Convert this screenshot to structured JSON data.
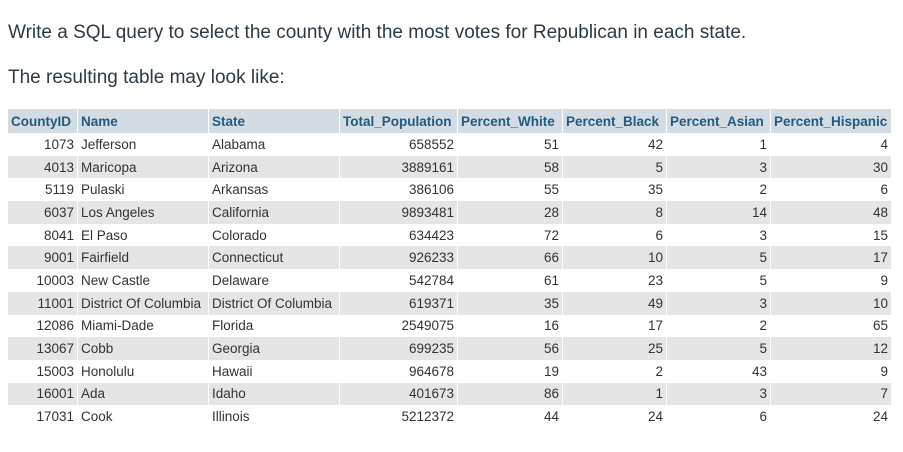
{
  "question": {
    "prompt": "Write a SQL query to select the county with the most votes for Republican in each state.",
    "subprompt": "The resulting table may look like:"
  },
  "table": {
    "columns": [
      "CountyID",
      "Name",
      "State",
      "Total_Population",
      "Percent_White",
      "Percent_Black",
      "Percent_Asian",
      "Percent_Hispanic"
    ],
    "rows": [
      [
        "1073",
        "Jefferson",
        "Alabama",
        "658552",
        "51",
        "42",
        "1",
        "4"
      ],
      [
        "4013",
        "Maricopa",
        "Arizona",
        "3889161",
        "58",
        "5",
        "3",
        "30"
      ],
      [
        "5119",
        "Pulaski",
        "Arkansas",
        "386106",
        "55",
        "35",
        "2",
        "6"
      ],
      [
        "6037",
        "Los Angeles",
        "California",
        "9893481",
        "28",
        "8",
        "14",
        "48"
      ],
      [
        "8041",
        "El Paso",
        "Colorado",
        "634423",
        "72",
        "6",
        "3",
        "15"
      ],
      [
        "9001",
        "Fairfield",
        "Connecticut",
        "926233",
        "66",
        "10",
        "5",
        "17"
      ],
      [
        "10003",
        "New Castle",
        "Delaware",
        "542784",
        "61",
        "23",
        "5",
        "9"
      ],
      [
        "11001",
        "District Of Columbia",
        "District Of Columbia",
        "619371",
        "35",
        "49",
        "3",
        "10"
      ],
      [
        "12086",
        "Miami-Dade",
        "Florida",
        "2549075",
        "16",
        "17",
        "2",
        "65"
      ],
      [
        "13067",
        "Cobb",
        "Georgia",
        "699235",
        "56",
        "25",
        "5",
        "12"
      ],
      [
        "15003",
        "Honolulu",
        "Hawaii",
        "964678",
        "19",
        "2",
        "43",
        "9"
      ],
      [
        "16001",
        "Ada",
        "Idaho",
        "401673",
        "86",
        "1",
        "3",
        "7"
      ],
      [
        "17031",
        "Cook",
        "Illinois",
        "5212372",
        "44",
        "24",
        "6",
        "24"
      ]
    ]
  }
}
